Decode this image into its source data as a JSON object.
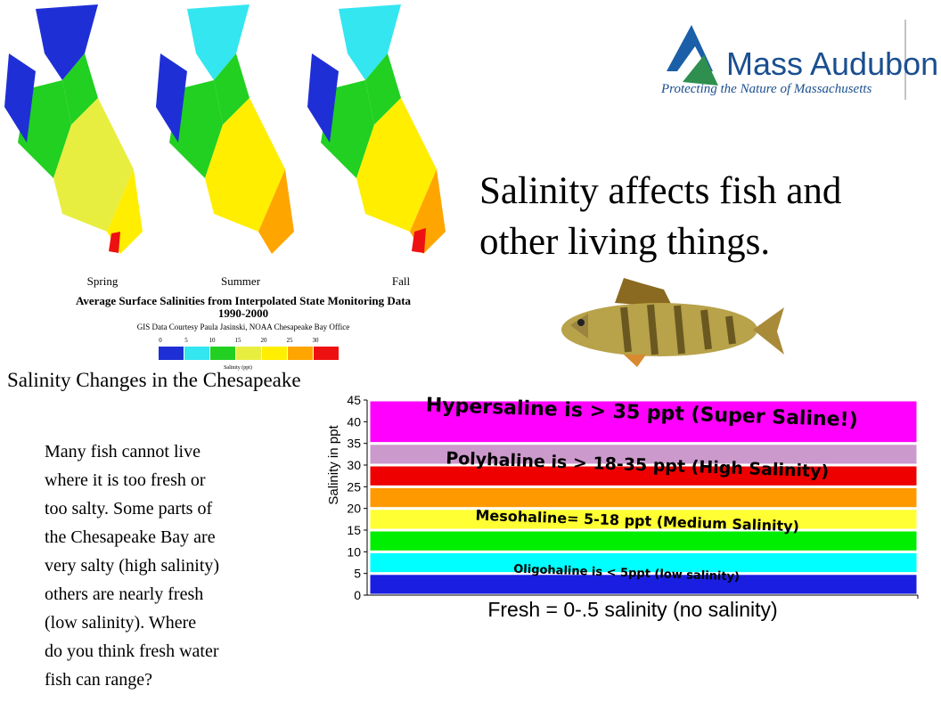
{
  "title_lines": [
    "Salinity affects fish and",
    "other living things."
  ],
  "logo": {
    "name": "Mass Audubon",
    "tagline": "Protecting the Nature of Massachusetts"
  },
  "map": {
    "seasons": [
      "Spring",
      "Summer",
      "Fall"
    ],
    "caption": "Average Surface Salinities from Interpolated State Monitoring Data",
    "years": "1990-2000",
    "credit": "GIS Data Courtesy Paula Jasinski, NOAA Chesapeake Bay Office",
    "legend_ticks": [
      0,
      5,
      10,
      15,
      20,
      25,
      30
    ],
    "legend_colors": [
      "#1f2fd6",
      "#33e6f0",
      "#22d022",
      "#e8ee40",
      "#ffee00",
      "#ffa500",
      "#ee1111"
    ],
    "legend_title": "Salinity (ppt)",
    "label": "Salinity Changes in the Chesapeake"
  },
  "body_lines": [
    "Many fish cannot live",
    "where it is too fresh or",
    "too salty.  Some parts of",
    "the Chesapeake Bay are",
    "very salty (high salinity)",
    "others are nearly fresh",
    "(low salinity).  Where",
    "do you think fresh water",
    "fish can range?"
  ],
  "chart_data": {
    "type": "stacked-bar",
    "segments": [
      {
        "color": "#1a1ee0",
        "value": 5
      },
      {
        "color": "#00ffff",
        "value": 5
      },
      {
        "color": "#00ee00",
        "value": 5
      },
      {
        "color": "#ffff33",
        "value": 5
      },
      {
        "color": "#ff9900",
        "value": 5
      },
      {
        "color": "#ee0000",
        "value": 5
      },
      {
        "color": "#cc99cc",
        "value": 5
      },
      {
        "color": "#ff00ff",
        "value": 10
      }
    ],
    "annotations": [
      "Hypersaline is > 35 ppt (Super Saline!)",
      "Polyhaline is > 18-35 ppt (High Salinity)",
      "Mesohaline= 5-18 ppt (Medium Salinity)",
      "Oligohaline is < 5ppt (low salinity)"
    ],
    "ylabel": "Salinity in ppt",
    "xlabel": "Fresh = 0-.5 salinity (no salinity)",
    "ylim": [
      0,
      45
    ],
    "yticks": [
      0,
      5,
      10,
      15,
      20,
      25,
      30,
      35,
      40,
      45
    ]
  }
}
